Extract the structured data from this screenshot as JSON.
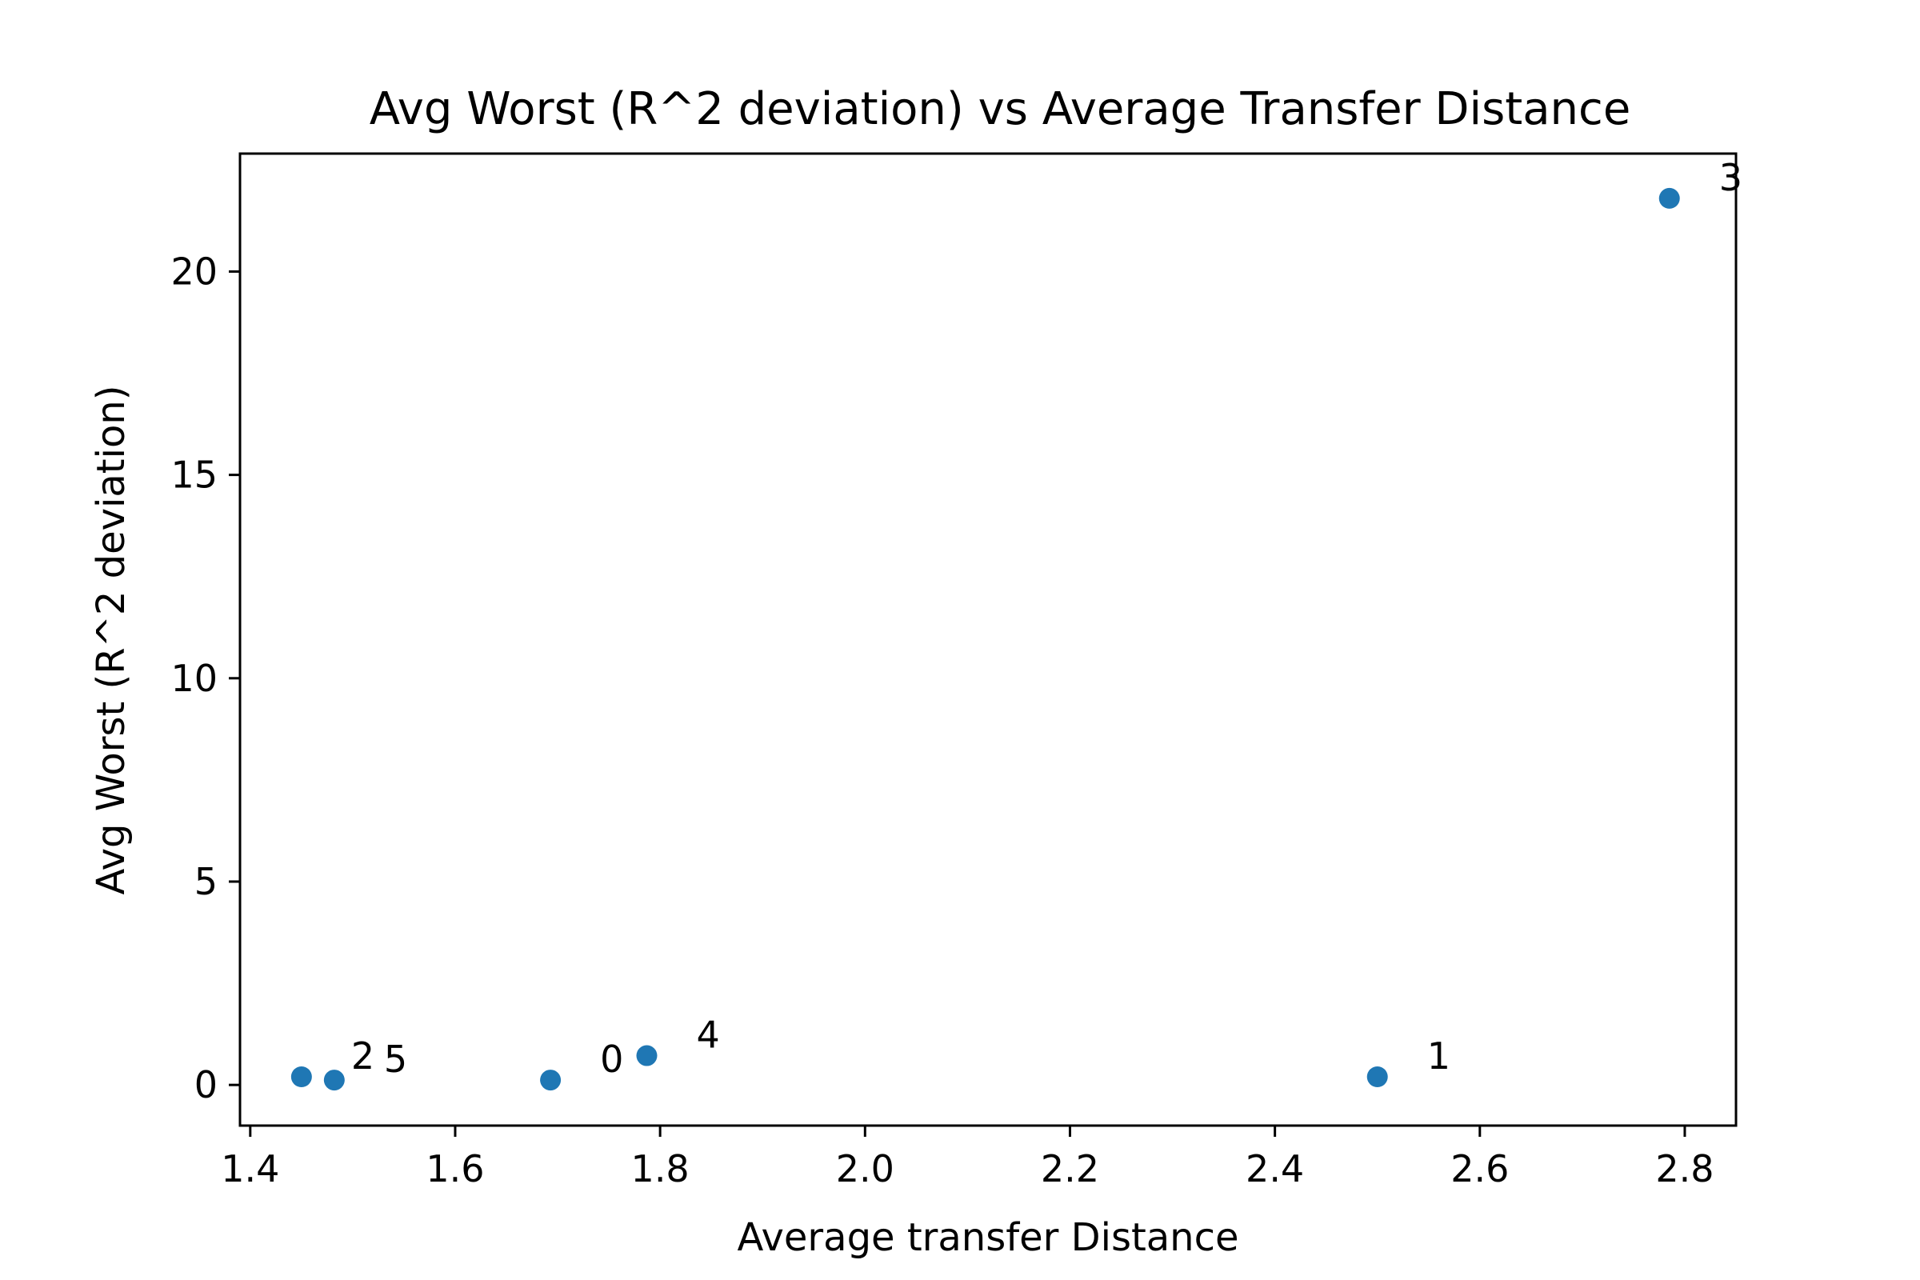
{
  "chart_data": {
    "type": "scatter",
    "title": "Avg Worst (R^2 deviation) vs Average Transfer Distance",
    "xlabel": "Average transfer Distance",
    "ylabel": "Avg Worst (R^2 deviation)",
    "xlim": [
      1.39,
      2.85
    ],
    "ylim": [
      -1.0,
      22.9
    ],
    "x_ticks": [
      "1.4",
      "1.6",
      "1.8",
      "2.0",
      "2.2",
      "2.4",
      "2.6",
      "2.8"
    ],
    "y_ticks": [
      "0",
      "5",
      "10",
      "15",
      "20"
    ],
    "grid": false,
    "legend": "none",
    "point_color": "#1f77b4",
    "points": [
      {
        "label": "0",
        "x": 1.693,
        "y": 0.12
      },
      {
        "label": "1",
        "x": 2.5,
        "y": 0.2
      },
      {
        "label": "2",
        "x": 1.45,
        "y": 0.2
      },
      {
        "label": "3",
        "x": 2.785,
        "y": 21.8
      },
      {
        "label": "4",
        "x": 1.787,
        "y": 0.72
      },
      {
        "label": "5",
        "x": 1.482,
        "y": 0.12
      }
    ]
  }
}
